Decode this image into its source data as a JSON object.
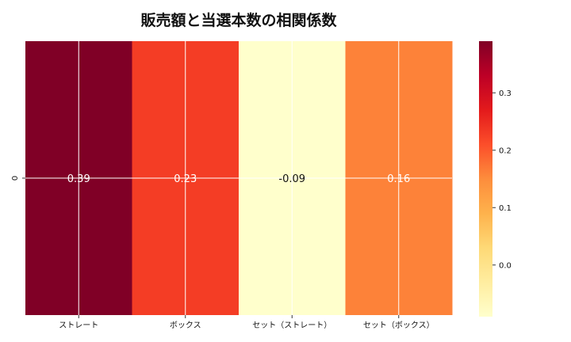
{
  "chart_data": {
    "type": "heatmap",
    "title": "販売額と当選本数の相関係数",
    "x_categories": [
      "ストレート",
      "ボックス",
      "セット（ストレート）",
      "セット（ボックス）"
    ],
    "y_categories": [
      "0"
    ],
    "values": [
      [
        0.39,
        0.23,
        -0.09,
        0.16
      ]
    ],
    "annotations": [
      "0.39",
      "0.23",
      "-0.09",
      "0.16"
    ],
    "colormap": "YlOrRd",
    "colorbar": {
      "range": [
        -0.09,
        0.39
      ],
      "ticks": [
        0.0,
        0.1,
        0.2,
        0.3
      ],
      "tick_labels": [
        "0.0",
        "0.1",
        "0.2",
        "0.3"
      ],
      "position": "right"
    },
    "grid": true
  }
}
